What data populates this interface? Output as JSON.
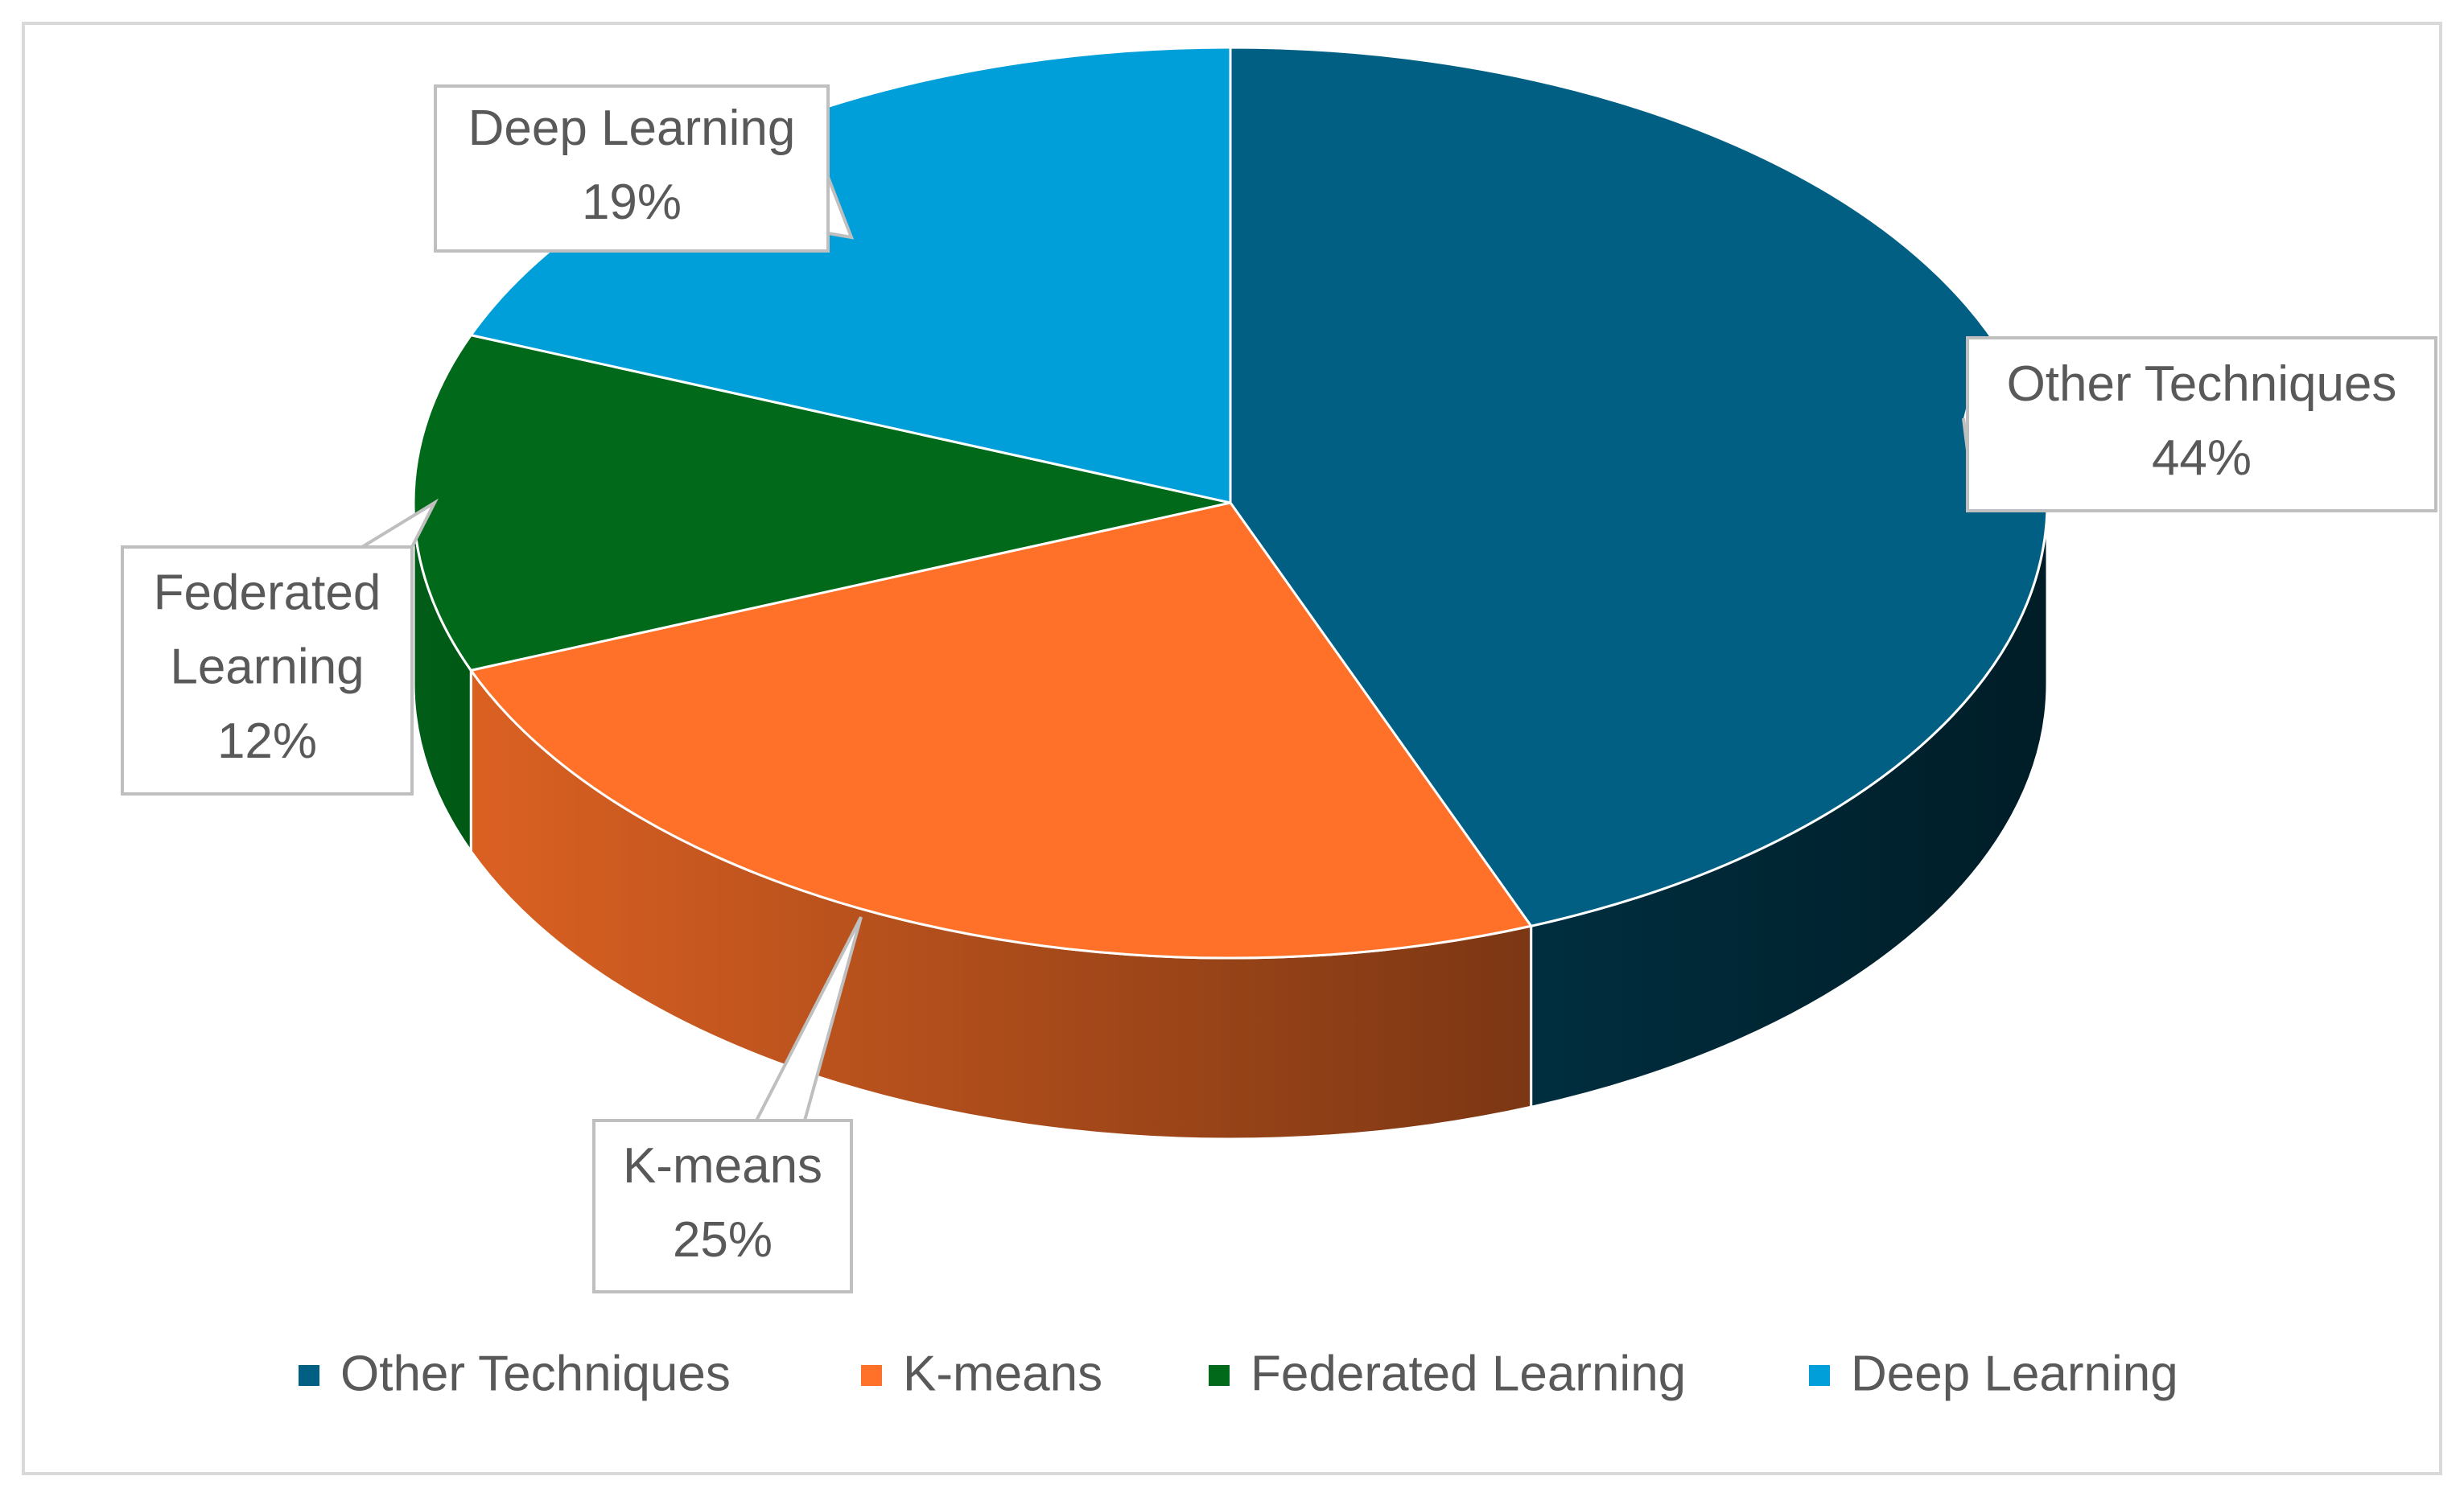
{
  "chart_data": {
    "type": "pie",
    "categories": [
      "Other Techniques",
      "K-means",
      "Federated Learning",
      "Deep Learning"
    ],
    "values": [
      44,
      25,
      12,
      19
    ],
    "value_labels": [
      "44%",
      "25%",
      "12%",
      "19%"
    ],
    "colors": [
      "#005f83",
      "#ff7028",
      "#00691a",
      "#009fd9"
    ],
    "legend": "bottom"
  }
}
